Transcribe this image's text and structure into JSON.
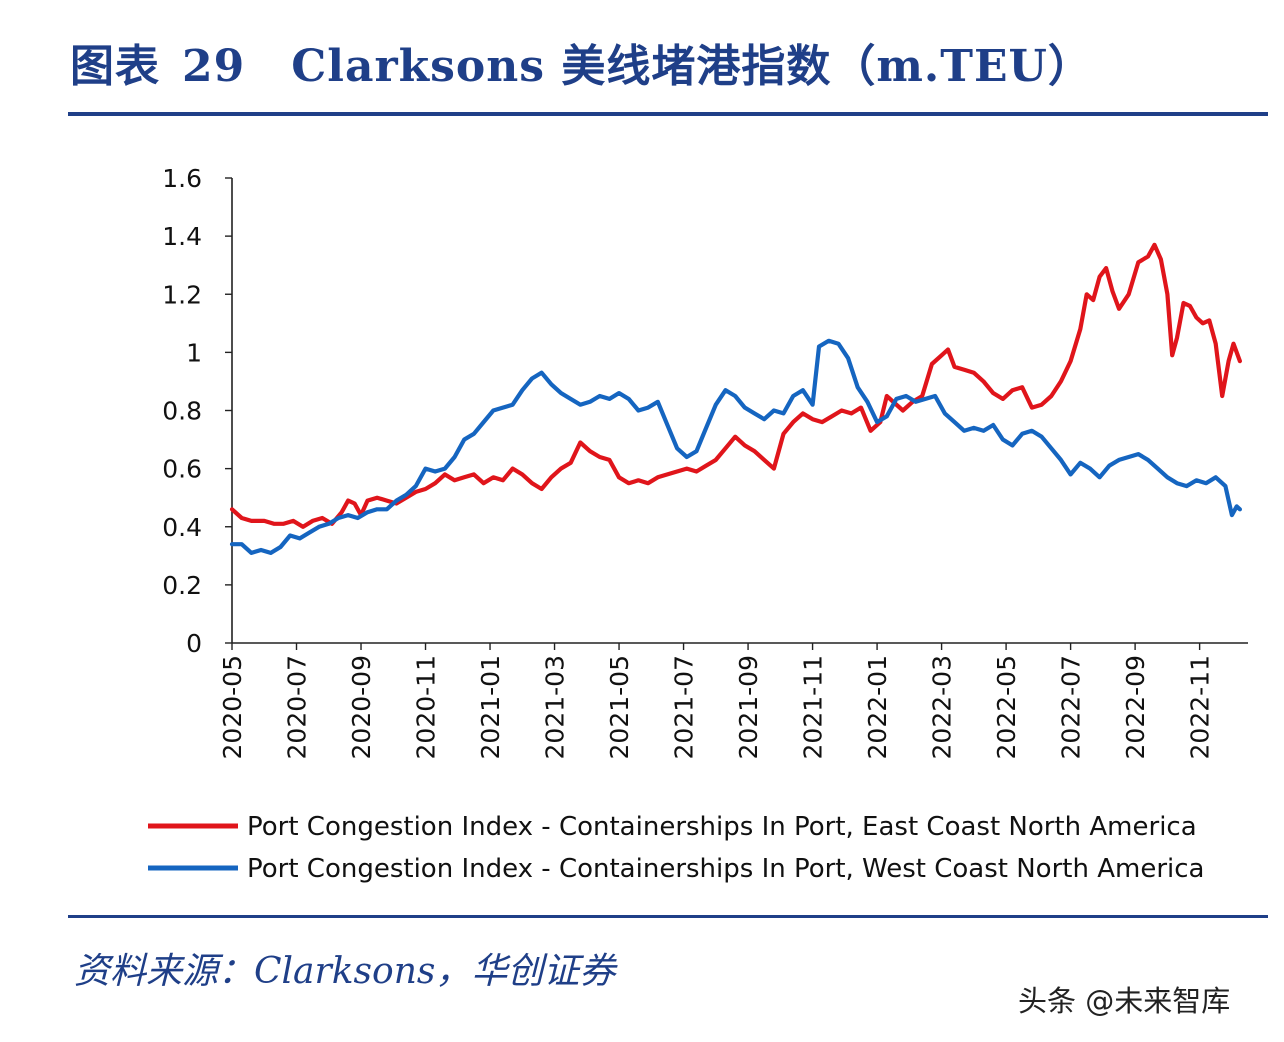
{
  "header": {
    "figure_label": "图表",
    "figure_number": "29",
    "title": "Clarksons 美线堵港指数（m.TEU）"
  },
  "footer": {
    "source": "资料来源：Clarksons，华创证券",
    "watermark": "头条 @未来智库"
  },
  "colors": {
    "brand": "#1f3f88",
    "east": "#e0151b",
    "west": "#1565c0"
  },
  "chart_data": {
    "type": "line",
    "title": "Clarksons 美线堵港指数（m.TEU）",
    "xlabel": "",
    "ylabel": "",
    "ylim": [
      0,
      1.6
    ],
    "yticks": [
      "0",
      "0.2",
      "0.4",
      "0.6",
      "0.8",
      "1",
      "1.2",
      "1.4",
      "1.6"
    ],
    "xlim": [
      0,
      31.5
    ],
    "xticks": [
      {
        "label": "2020-05",
        "pos": 0
      },
      {
        "label": "2020-07",
        "pos": 2
      },
      {
        "label": "2020-09",
        "pos": 4
      },
      {
        "label": "2020-11",
        "pos": 6
      },
      {
        "label": "2021-01",
        "pos": 8
      },
      {
        "label": "2021-03",
        "pos": 10
      },
      {
        "label": "2021-05",
        "pos": 12
      },
      {
        "label": "2021-07",
        "pos": 14
      },
      {
        "label": "2021-09",
        "pos": 16
      },
      {
        "label": "2021-11",
        "pos": 18
      },
      {
        "label": "2022-01",
        "pos": 20
      },
      {
        "label": "2022-03",
        "pos": 22
      },
      {
        "label": "2022-05",
        "pos": 24
      },
      {
        "label": "2022-07",
        "pos": 26
      },
      {
        "label": "2022-09",
        "pos": 28
      },
      {
        "label": "2022-11",
        "pos": 30
      }
    ],
    "legend_position": "bottom",
    "series": [
      {
        "name": "Port Congestion Index - Containerships In Port, East Coast North America",
        "color": "#e0151b",
        "points": [
          [
            0,
            0.46
          ],
          [
            0.3,
            0.43
          ],
          [
            0.6,
            0.42
          ],
          [
            1.0,
            0.42
          ],
          [
            1.3,
            0.41
          ],
          [
            1.6,
            0.41
          ],
          [
            1.9,
            0.42
          ],
          [
            2.2,
            0.4
          ],
          [
            2.5,
            0.42
          ],
          [
            2.8,
            0.43
          ],
          [
            3.1,
            0.41
          ],
          [
            3.4,
            0.45
          ],
          [
            3.6,
            0.49
          ],
          [
            3.8,
            0.48
          ],
          [
            4.0,
            0.44
          ],
          [
            4.2,
            0.49
          ],
          [
            4.5,
            0.5
          ],
          [
            4.8,
            0.49
          ],
          [
            5.1,
            0.48
          ],
          [
            5.4,
            0.5
          ],
          [
            5.7,
            0.52
          ],
          [
            6.0,
            0.53
          ],
          [
            6.3,
            0.55
          ],
          [
            6.6,
            0.58
          ],
          [
            6.9,
            0.56
          ],
          [
            7.2,
            0.57
          ],
          [
            7.5,
            0.58
          ],
          [
            7.8,
            0.55
          ],
          [
            8.1,
            0.57
          ],
          [
            8.4,
            0.56
          ],
          [
            8.7,
            0.6
          ],
          [
            9.0,
            0.58
          ],
          [
            9.3,
            0.55
          ],
          [
            9.6,
            0.53
          ],
          [
            9.9,
            0.57
          ],
          [
            10.2,
            0.6
          ],
          [
            10.5,
            0.62
          ],
          [
            10.8,
            0.69
          ],
          [
            11.1,
            0.66
          ],
          [
            11.4,
            0.64
          ],
          [
            11.7,
            0.63
          ],
          [
            12.0,
            0.57
          ],
          [
            12.3,
            0.55
          ],
          [
            12.6,
            0.56
          ],
          [
            12.9,
            0.55
          ],
          [
            13.2,
            0.57
          ],
          [
            13.5,
            0.58
          ],
          [
            13.8,
            0.59
          ],
          [
            14.1,
            0.6
          ],
          [
            14.4,
            0.59
          ],
          [
            14.7,
            0.61
          ],
          [
            15.0,
            0.63
          ],
          [
            15.3,
            0.67
          ],
          [
            15.6,
            0.71
          ],
          [
            15.9,
            0.68
          ],
          [
            16.2,
            0.66
          ],
          [
            16.5,
            0.63
          ],
          [
            16.8,
            0.6
          ],
          [
            17.1,
            0.72
          ],
          [
            17.4,
            0.76
          ],
          [
            17.7,
            0.79
          ],
          [
            18.0,
            0.77
          ],
          [
            18.3,
            0.76
          ],
          [
            18.6,
            0.78
          ],
          [
            18.9,
            0.8
          ],
          [
            19.2,
            0.79
          ],
          [
            19.5,
            0.81
          ],
          [
            19.8,
            0.73
          ],
          [
            20.1,
            0.76
          ],
          [
            20.3,
            0.85
          ],
          [
            20.5,
            0.83
          ],
          [
            20.8,
            0.8
          ],
          [
            21.1,
            0.83
          ],
          [
            21.4,
            0.85
          ],
          [
            21.7,
            0.96
          ],
          [
            22.0,
            0.99
          ],
          [
            22.2,
            1.01
          ],
          [
            22.4,
            0.95
          ],
          [
            22.7,
            0.94
          ],
          [
            23.0,
            0.93
          ],
          [
            23.3,
            0.9
          ],
          [
            23.6,
            0.86
          ],
          [
            23.9,
            0.84
          ],
          [
            24.2,
            0.87
          ],
          [
            24.5,
            0.88
          ],
          [
            24.8,
            0.81
          ],
          [
            25.1,
            0.82
          ],
          [
            25.4,
            0.85
          ],
          [
            25.7,
            0.9
          ],
          [
            26.0,
            0.97
          ],
          [
            26.3,
            1.08
          ],
          [
            26.5,
            1.2
          ],
          [
            26.7,
            1.18
          ],
          [
            26.9,
            1.26
          ],
          [
            27.1,
            1.29
          ],
          [
            27.3,
            1.21
          ],
          [
            27.5,
            1.15
          ],
          [
            27.8,
            1.2
          ],
          [
            28.1,
            1.31
          ],
          [
            28.4,
            1.33
          ],
          [
            28.6,
            1.37
          ],
          [
            28.8,
            1.32
          ],
          [
            29.0,
            1.2
          ],
          [
            29.15,
            0.99
          ],
          [
            29.3,
            1.05
          ],
          [
            29.5,
            1.17
          ],
          [
            29.7,
            1.16
          ],
          [
            29.9,
            1.12
          ],
          [
            30.1,
            1.1
          ],
          [
            30.3,
            1.11
          ],
          [
            30.5,
            1.03
          ],
          [
            30.7,
            0.85
          ],
          [
            30.9,
            0.97
          ],
          [
            31.05,
            1.03
          ],
          [
            31.25,
            0.97
          ]
        ]
      },
      {
        "name": "Port Congestion Index - Containerships In Port, West Coast North America",
        "color": "#1565c0",
        "points": [
          [
            0,
            0.34
          ],
          [
            0.3,
            0.34
          ],
          [
            0.6,
            0.31
          ],
          [
            0.9,
            0.32
          ],
          [
            1.2,
            0.31
          ],
          [
            1.5,
            0.33
          ],
          [
            1.8,
            0.37
          ],
          [
            2.1,
            0.36
          ],
          [
            2.4,
            0.38
          ],
          [
            2.7,
            0.4
          ],
          [
            3.0,
            0.41
          ],
          [
            3.3,
            0.43
          ],
          [
            3.6,
            0.44
          ],
          [
            3.9,
            0.43
          ],
          [
            4.2,
            0.45
          ],
          [
            4.5,
            0.46
          ],
          [
            4.8,
            0.46
          ],
          [
            5.1,
            0.49
          ],
          [
            5.4,
            0.51
          ],
          [
            5.7,
            0.54
          ],
          [
            6.0,
            0.6
          ],
          [
            6.3,
            0.59
          ],
          [
            6.6,
            0.6
          ],
          [
            6.9,
            0.64
          ],
          [
            7.2,
            0.7
          ],
          [
            7.5,
            0.72
          ],
          [
            7.8,
            0.76
          ],
          [
            8.1,
            0.8
          ],
          [
            8.4,
            0.81
          ],
          [
            8.7,
            0.82
          ],
          [
            9.0,
            0.87
          ],
          [
            9.3,
            0.91
          ],
          [
            9.6,
            0.93
          ],
          [
            9.9,
            0.89
          ],
          [
            10.2,
            0.86
          ],
          [
            10.5,
            0.84
          ],
          [
            10.8,
            0.82
          ],
          [
            11.1,
            0.83
          ],
          [
            11.4,
            0.85
          ],
          [
            11.7,
            0.84
          ],
          [
            12.0,
            0.86
          ],
          [
            12.3,
            0.84
          ],
          [
            12.6,
            0.8
          ],
          [
            12.9,
            0.81
          ],
          [
            13.2,
            0.83
          ],
          [
            13.5,
            0.75
          ],
          [
            13.8,
            0.67
          ],
          [
            14.1,
            0.64
          ],
          [
            14.4,
            0.66
          ],
          [
            14.7,
            0.74
          ],
          [
            15.0,
            0.82
          ],
          [
            15.3,
            0.87
          ],
          [
            15.6,
            0.85
          ],
          [
            15.9,
            0.81
          ],
          [
            16.2,
            0.79
          ],
          [
            16.5,
            0.77
          ],
          [
            16.8,
            0.8
          ],
          [
            17.1,
            0.79
          ],
          [
            17.4,
            0.85
          ],
          [
            17.7,
            0.87
          ],
          [
            18.0,
            0.82
          ],
          [
            18.2,
            1.02
          ],
          [
            18.5,
            1.04
          ],
          [
            18.8,
            1.03
          ],
          [
            19.1,
            0.98
          ],
          [
            19.4,
            0.88
          ],
          [
            19.7,
            0.83
          ],
          [
            20.0,
            0.76
          ],
          [
            20.3,
            0.78
          ],
          [
            20.6,
            0.84
          ],
          [
            20.9,
            0.85
          ],
          [
            21.2,
            0.83
          ],
          [
            21.5,
            0.84
          ],
          [
            21.8,
            0.85
          ],
          [
            22.1,
            0.79
          ],
          [
            22.4,
            0.76
          ],
          [
            22.7,
            0.73
          ],
          [
            23.0,
            0.74
          ],
          [
            23.3,
            0.73
          ],
          [
            23.6,
            0.75
          ],
          [
            23.9,
            0.7
          ],
          [
            24.2,
            0.68
          ],
          [
            24.5,
            0.72
          ],
          [
            24.8,
            0.73
          ],
          [
            25.1,
            0.71
          ],
          [
            25.4,
            0.67
          ],
          [
            25.7,
            0.63
          ],
          [
            26.0,
            0.58
          ],
          [
            26.3,
            0.62
          ],
          [
            26.6,
            0.6
          ],
          [
            26.9,
            0.57
          ],
          [
            27.2,
            0.61
          ],
          [
            27.5,
            0.63
          ],
          [
            27.8,
            0.64
          ],
          [
            28.1,
            0.65
          ],
          [
            28.4,
            0.63
          ],
          [
            28.7,
            0.6
          ],
          [
            29.0,
            0.57
          ],
          [
            29.3,
            0.55
          ],
          [
            29.6,
            0.54
          ],
          [
            29.9,
            0.56
          ],
          [
            30.2,
            0.55
          ],
          [
            30.5,
            0.57
          ],
          [
            30.8,
            0.54
          ],
          [
            31.0,
            0.44
          ],
          [
            31.15,
            0.47
          ],
          [
            31.25,
            0.46
          ]
        ]
      }
    ]
  }
}
